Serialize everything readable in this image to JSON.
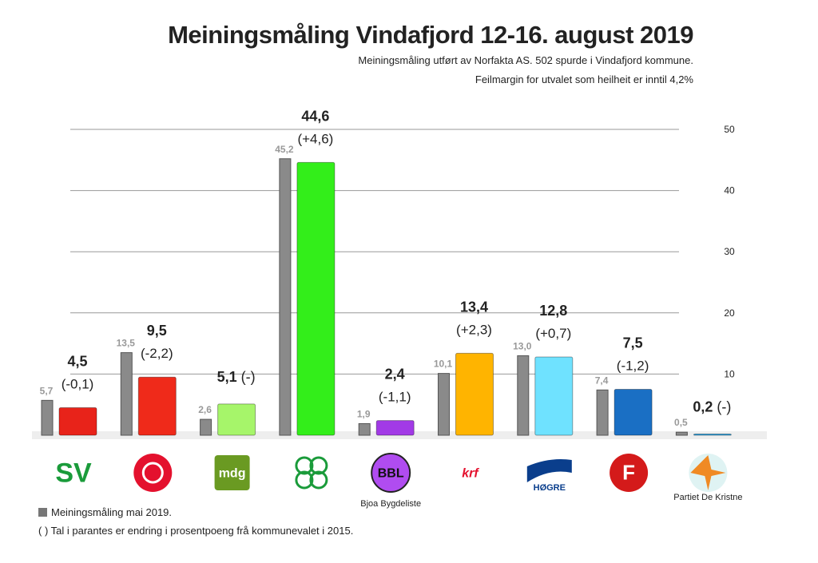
{
  "chart_data": {
    "type": "bar",
    "title": "Meiningsmåling Vindafjord 12-16. august 2019",
    "subtitle": [
      "Meiningsmåling utført av Norfakta AS. 502 spurde i Vindafjord kommune.",
      "Feilmargin for utvalet som heilheit er inntil 4,2%"
    ],
    "ylim": [
      0,
      50
    ],
    "yticks": [
      10,
      20,
      30,
      40,
      50
    ],
    "grid": true,
    "categories": [
      "SV",
      "Ap",
      "MDG",
      "Sp",
      "BBL",
      "KrF",
      "Høgre",
      "FrP",
      "Partiet De Kristne"
    ],
    "series": [
      {
        "name": "Meiningsmåling mai 2019.",
        "color": "#8a8a8a",
        "values": [
          5.7,
          13.5,
          2.6,
          45.2,
          1.9,
          10.1,
          13.0,
          7.4,
          0.5
        ],
        "labels": [
          "5,7",
          "13,5",
          "2,6",
          "45,2",
          "1,9",
          "10,1",
          "13,0",
          "7,4",
          "0,5"
        ]
      },
      {
        "values": [
          4.5,
          9.5,
          5.1,
          44.6,
          2.4,
          13.4,
          12.8,
          7.5,
          0.2
        ],
        "labels": [
          "4,5",
          "9,5",
          "5,1",
          "44,6",
          "2,4",
          "13,4",
          "12,8",
          "7,5",
          "0,2"
        ],
        "changes": [
          "(-0,1)",
          "(-2,2)",
          "(-)",
          "(+4,6)",
          "(-1,1)",
          "(+2,3)",
          "(+0,7)",
          "(-1,2)",
          "(-)"
        ],
        "colors": [
          "#e8231a",
          "#ef2a1a",
          "#a6f56a",
          "#33ee1a",
          "#a23ae6",
          "#ffb400",
          "#6fe2ff",
          "#1a6fc4",
          "#1fa6ee"
        ]
      }
    ]
  },
  "logos": [
    {
      "name": "sv",
      "text": "SV",
      "color": "#1a9b3a"
    },
    {
      "name": "ap-rose",
      "text": "",
      "color": "#e4112e"
    },
    {
      "name": "mdg",
      "text": "mdg",
      "color": "#6a9a22"
    },
    {
      "name": "sp-clover",
      "text": "",
      "color": "#1a9b3a"
    },
    {
      "name": "bbl",
      "text": "BBL",
      "color": "#b04cf0",
      "caption": "Bjoa Bygdeliste"
    },
    {
      "name": "krf",
      "text": "krf",
      "color": "#e4112e"
    },
    {
      "name": "hogre",
      "text": "HØGRE",
      "color": "#0a3e8c"
    },
    {
      "name": "frp-apple",
      "text": "F",
      "color": "#d41a1a"
    },
    {
      "name": "pdk-compass",
      "text": "",
      "color": "#f08a24",
      "caption": "Partiet De Kristne"
    }
  ],
  "notes": {
    "legend": "Meiningsmåling mai 2019.",
    "parentheses": "( ) Tal i parantes er endring i prosentpoeng frå kommunevalet i 2015."
  }
}
